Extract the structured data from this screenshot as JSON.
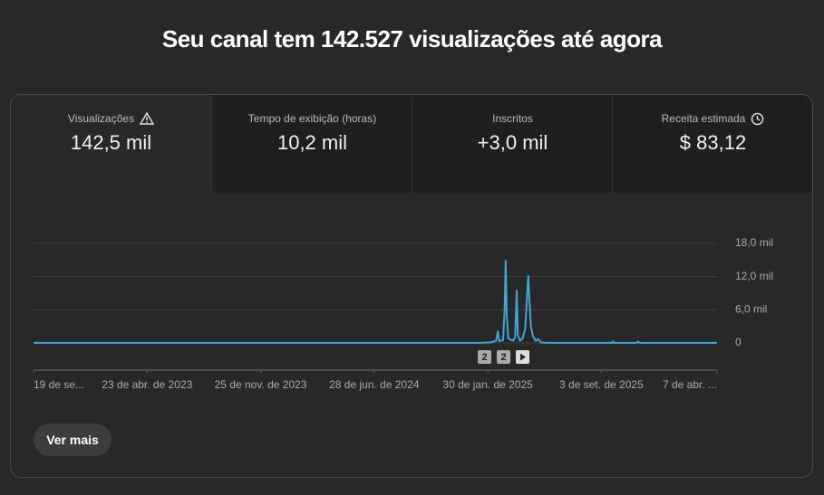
{
  "header": {
    "title": "Seu canal tem 142.527 visualizações até agora"
  },
  "metrics": [
    {
      "label": "Visualizações",
      "value": "142,5 mil"
    },
    {
      "label": "Tempo de exibição (horas)",
      "value": "10,2 mil"
    },
    {
      "label": "Inscritos",
      "value": "+3,0 mil"
    },
    {
      "label": "Receita estimada",
      "value": "$ 83,12"
    }
  ],
  "chart_data": {
    "type": "line",
    "x": [
      0,
      850,
      870,
      880,
      883,
      886,
      893,
      896,
      898,
      900,
      903,
      907,
      912,
      916,
      919,
      921,
      925,
      930,
      935,
      939,
      941,
      943,
      946,
      950,
      955,
      960,
      965,
      975,
      1100,
      1102,
      1104,
      1148,
      1150,
      1152,
      1300
    ],
    "series": [
      {
        "name": "Visualizações",
        "color": "#3ea6d8",
        "values": [
          20,
          30,
          100,
          400,
          2100,
          300,
          500,
          6000,
          14900,
          5000,
          800,
          600,
          400,
          1000,
          9500,
          1500,
          400,
          800,
          2500,
          9000,
          12100,
          8000,
          3000,
          1200,
          400,
          700,
          100,
          20,
          20,
          300,
          20,
          20,
          250,
          20,
          20
        ]
      }
    ],
    "xlim": [
      0,
      1300
    ],
    "xticks": [
      {
        "value": 0,
        "label": "19 de se..."
      },
      {
        "value": 216,
        "label": "23 de abr. de 2023"
      },
      {
        "value": 432,
        "label": "25 de nov. de 2023"
      },
      {
        "value": 648,
        "label": "28 de jun. de 2024"
      },
      {
        "value": 864,
        "label": "30 de jan. de 2025"
      },
      {
        "value": 1080,
        "label": "3 de set. de 2025"
      },
      {
        "value": 1300,
        "label": "7 de abr. ..."
      }
    ],
    "ylim": [
      0,
      18000
    ],
    "yticks": [
      0,
      {
        "value": 6000,
        "label": "6,0 mil"
      },
      {
        "value": 12000,
        "label": "12,0 mil"
      },
      {
        "value": 18000,
        "label": "18,0 mil"
      }
    ],
    "grid": true,
    "annotations": [
      "2",
      "2"
    ]
  },
  "button": {
    "label": "Ver mais"
  }
}
